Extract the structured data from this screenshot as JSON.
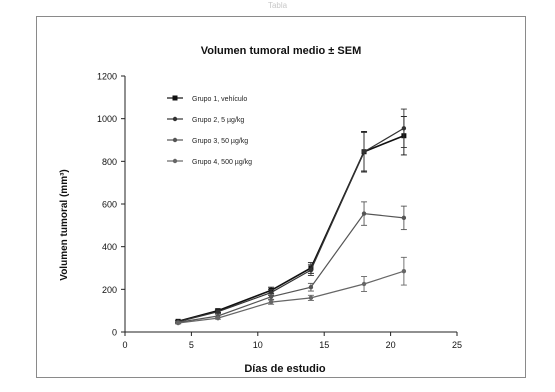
{
  "figure_label": "Tabla",
  "chart_data": {
    "type": "line",
    "title": "Volumen tumoral medio ± SEM",
    "xlabel": "Días de estudio",
    "ylabel": "Volumen tumoral (mm³)",
    "xlim": [
      0,
      25
    ],
    "ylim": [
      0,
      1200
    ],
    "xticks": [
      0,
      5,
      10,
      15,
      20,
      25
    ],
    "yticks": [
      0,
      200,
      400,
      600,
      800,
      1000,
      1200
    ],
    "grid": false,
    "legend_position": "top-left",
    "x": [
      4,
      7,
      11,
      14,
      18,
      21
    ],
    "series": [
      {
        "name": "Grupo 1, vehículo",
        "marker": "square",
        "color": "#111111",
        "values": [
          50,
          100,
          195,
          300,
          845,
          920
        ],
        "sem": [
          5,
          8,
          15,
          25,
          95,
          90
        ]
      },
      {
        "name": "Grupo 2, 5 µg/kg",
        "marker": "circle",
        "color": "#333333",
        "values": [
          48,
          95,
          185,
          290,
          845,
          955
        ],
        "sem": [
          5,
          8,
          14,
          25,
          90,
          90
        ]
      },
      {
        "name": "Grupo 3, 50 µg/kg",
        "marker": "circle",
        "color": "#555555",
        "values": [
          45,
          75,
          165,
          210,
          555,
          535
        ],
        "sem": [
          4,
          6,
          12,
          18,
          55,
          55
        ]
      },
      {
        "name": "Grupo 4, 500 µg/kg",
        "marker": "circle",
        "color": "#666666",
        "values": [
          42,
          65,
          140,
          160,
          225,
          285
        ],
        "sem": [
          4,
          5,
          10,
          12,
          35,
          65
        ]
      }
    ]
  }
}
